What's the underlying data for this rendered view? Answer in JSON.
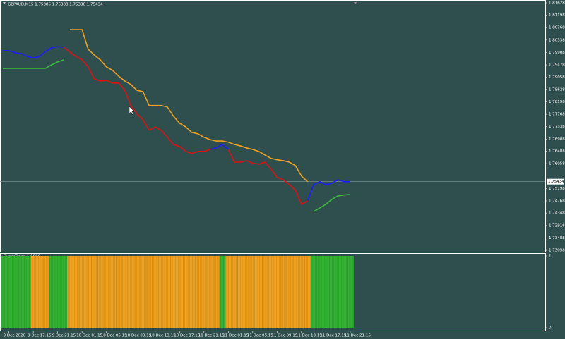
{
  "chart_data": [
    {
      "type": "line",
      "title": "GBPAUD,M15  1.75385 1.75388 1.75336 1.75434",
      "ylim": [
        1.73058,
        1.81628
      ],
      "yticks": [
        1.81628,
        1.81198,
        1.80768,
        1.80338,
        1.79908,
        1.79478,
        1.79058,
        1.78628,
        1.78198,
        1.77768,
        1.77338,
        1.76908,
        1.76488,
        1.76058,
        1.75198,
        1.74768,
        1.74348,
        1.73916,
        1.73488,
        1.73058
      ],
      "current_price": 1.75434,
      "series": [
        {
          "color": "#1c1cff",
          "values": [
            1.7997,
            1.7997,
            1.799,
            1.7987,
            1.7977,
            1.7972,
            1.7977,
            1.7994,
            1.8007,
            1.8011,
            1.8009,
            null,
            null,
            null,
            null,
            null,
            null,
            null,
            null,
            null,
            null,
            null,
            null,
            null,
            null,
            null,
            null,
            null,
            null,
            null,
            null,
            null,
            null,
            null,
            1.7655,
            1.766,
            1.7672,
            1.7655,
            null,
            null,
            null,
            null,
            null,
            null,
            null,
            null,
            null,
            null,
            null,
            null,
            1.7477,
            1.7533,
            1.7543,
            1.7533,
            1.7538,
            1.755,
            1.7543,
            1.7543
          ]
        },
        {
          "color": "#dd1111",
          "values": [
            null,
            null,
            null,
            null,
            null,
            null,
            null,
            null,
            null,
            null,
            1.8009,
            1.7992,
            1.7977,
            1.7965,
            1.7941,
            1.7899,
            1.7892,
            1.7894,
            1.7885,
            1.7885,
            1.786,
            1.7807,
            1.7777,
            1.7758,
            1.7721,
            1.7733,
            1.7721,
            1.7697,
            1.7672,
            1.7665,
            1.7648,
            1.7641,
            1.7648,
            1.7648,
            1.7655,
            null,
            null,
            1.7655,
            1.7611,
            1.7611,
            1.7616,
            1.7607,
            1.7604,
            1.7611,
            1.7587,
            1.7558,
            1.755,
            1.7533,
            1.7514,
            1.7465,
            1.7477,
            null,
            null,
            null,
            null,
            null,
            null,
            null
          ]
        },
        {
          "color": "#3cbc3c",
          "values": [
            1.7936,
            1.7936,
            1.7936,
            1.7936,
            1.7936,
            1.7936,
            1.7936,
            1.7936,
            1.7948,
            1.7958,
            1.7965,
            null,
            null,
            null,
            null,
            null,
            null,
            null,
            null,
            null,
            null,
            null,
            null,
            null,
            null,
            null,
            null,
            null,
            null,
            null,
            null,
            null,
            null,
            null,
            null,
            null,
            null,
            null,
            null,
            null,
            null,
            null,
            null,
            null,
            null,
            null,
            null,
            null,
            null,
            null,
            null,
            1.744,
            1.7452,
            1.7465,
            1.7482,
            1.7494,
            1.7497,
            1.7499
          ]
        },
        {
          "color": "#f0a020",
          "values": [
            null,
            null,
            null,
            null,
            null,
            null,
            null,
            null,
            null,
            null,
            null,
            1.807,
            1.807,
            1.807,
            1.8002,
            1.7982,
            1.7965,
            1.7941,
            1.7929,
            1.7909,
            1.7892,
            1.788,
            1.786,
            1.7855,
            1.7807,
            1.7807,
            1.7807,
            1.7802,
            1.777,
            1.7746,
            1.7733,
            1.7714,
            1.7709,
            1.7697,
            1.7689,
            1.7684,
            1.7684,
            1.768,
            1.7672,
            1.7667,
            1.766,
            1.7655,
            1.7648,
            1.7636,
            1.7624,
            1.7619,
            1.7616,
            1.7611,
            1.7599,
            1.7563,
            1.7543,
            null,
            null,
            null,
            null,
            null,
            null,
            null
          ]
        }
      ]
    },
    {
      "type": "bar",
      "title": "SuperTrend 1.0000",
      "ylim": [
        0,
        1
      ],
      "yticks": [
        1,
        0
      ],
      "categories": [
        null,
        "9 Dec 2020",
        null,
        null,
        null,
        "9 Dec 17:15",
        null,
        null,
        null,
        "9 Dec 21:15",
        null,
        null,
        null,
        "10 Dec 01:15",
        null,
        null,
        null,
        "10 Dec 05:15",
        null,
        null,
        null,
        "10 Dec 09:15",
        null,
        null,
        null,
        "10 Dec 13:15",
        null,
        null,
        null,
        "10 Dec 17:15",
        null,
        null,
        null,
        "10 Dec 21:15",
        null,
        null,
        null,
        "11 Dec 01:15",
        null,
        null,
        null,
        "11 Dec 05:15",
        null,
        null,
        null,
        "11 Dec 09:15",
        null,
        null,
        null,
        "11 Dec 13:15",
        null,
        null,
        null,
        "11 Dec 17:15",
        null,
        null,
        null,
        "11 Dec 21:15"
      ],
      "values": [
        1,
        1,
        1,
        1,
        1,
        1,
        1,
        1,
        1,
        1,
        1,
        1,
        1,
        1,
        1,
        1,
        1,
        1,
        1,
        1,
        1,
        1,
        1,
        1,
        1,
        1,
        1,
        1,
        1,
        1,
        1,
        1,
        1,
        1,
        1,
        1,
        1,
        1,
        1,
        1,
        1,
        1,
        1,
        1,
        1,
        1,
        1,
        1,
        1,
        1,
        1,
        1,
        1,
        1,
        1,
        1,
        1,
        1
      ],
      "colors": [
        "#32b432",
        "#32b432",
        "#32b432",
        "#32b432",
        "#32b432",
        "#f0a21e",
        "#f0a21e",
        "#f0a21e",
        "#32b432",
        "#32b432",
        "#32b432",
        "#f0a21e",
        "#f0a21e",
        "#f0a21e",
        "#f0a21e",
        "#f0a21e",
        "#f0a21e",
        "#f0a21e",
        "#f0a21e",
        "#f0a21e",
        "#f0a21e",
        "#f0a21e",
        "#f0a21e",
        "#f0a21e",
        "#f0a21e",
        "#f0a21e",
        "#f0a21e",
        "#f0a21e",
        "#f0a21e",
        "#f0a21e",
        "#f0a21e",
        "#f0a21e",
        "#f0a21e",
        "#f0a21e",
        "#f0a21e",
        "#f0a21e",
        "#32b432",
        "#f0a21e",
        "#f0a21e",
        "#f0a21e",
        "#f0a21e",
        "#f0a21e",
        "#f0a21e",
        "#f0a21e",
        "#f0a21e",
        "#f0a21e",
        "#f0a21e",
        "#f0a21e",
        "#f0a21e",
        "#f0a21e",
        "#f0a21e",
        "#32b432",
        "#32b432",
        "#32b432",
        "#32b432",
        "#32b432",
        "#32b432",
        "#32b432"
      ]
    }
  ]
}
